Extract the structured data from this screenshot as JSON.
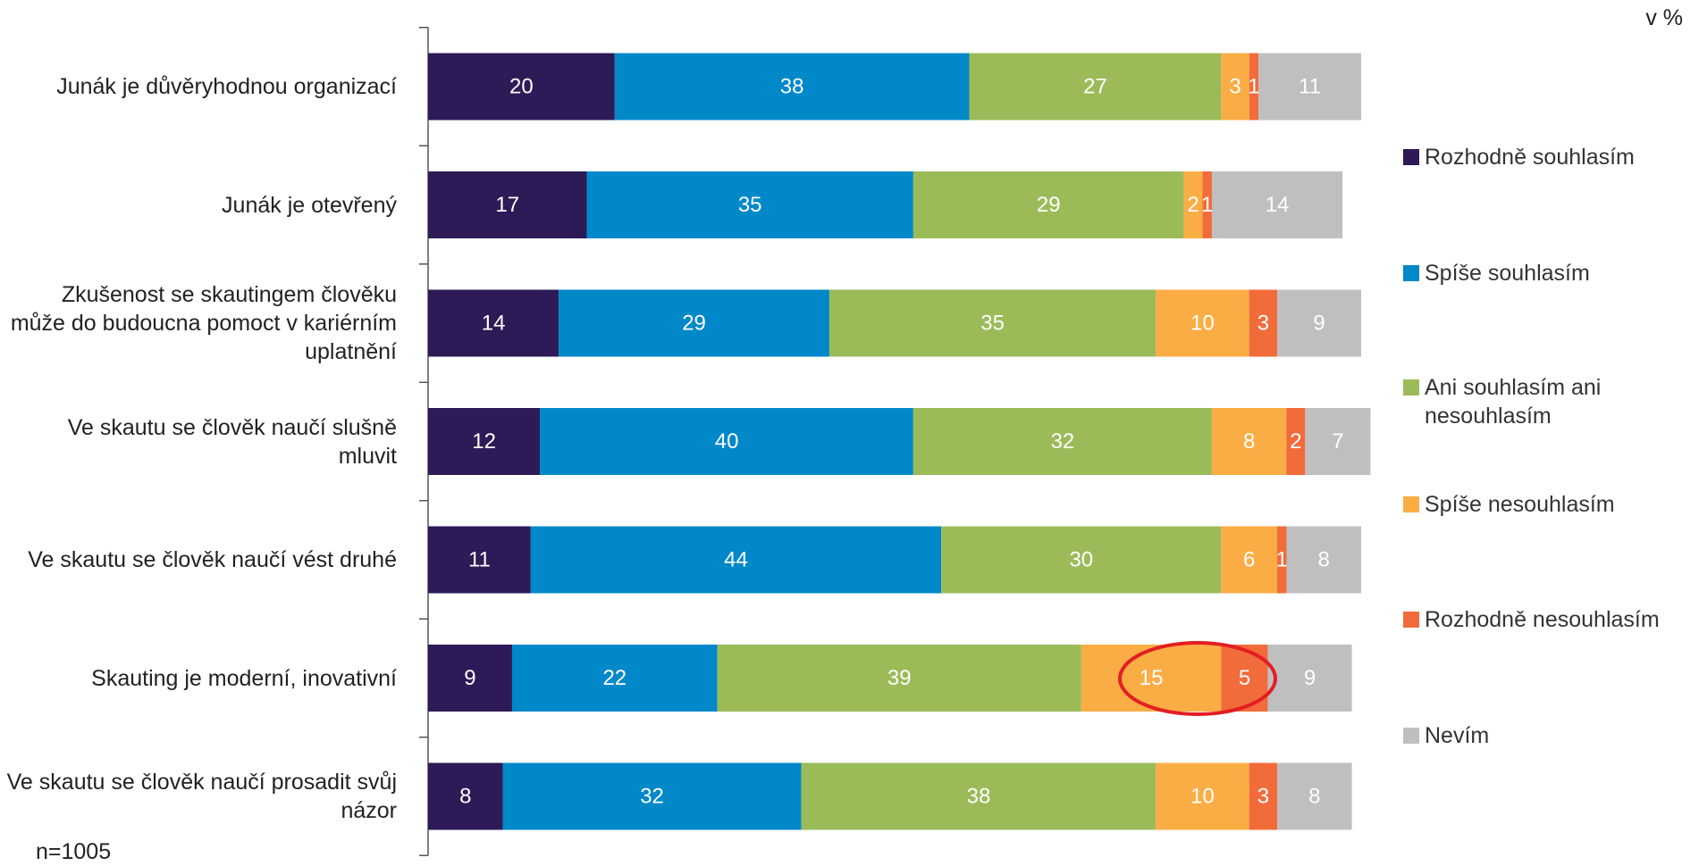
{
  "chart_data": {
    "type": "stacked_bar_horizontal",
    "annotations": [
      "v %",
      "n=1005"
    ],
    "categories": [
      "Junák je důvěryhodnou organizací",
      "Junák je otevřený",
      "Zkušenost se skautingem člověku může do budoucna pomoct v kariérním uplatnění",
      "Ve skautu se člověk naučí slušně mluvit",
      "Ve skautu se člověk naučí vést druhé",
      "Skauting je moderní, inovativní",
      "Ve skautu se člověk naučí prosadit svůj názor"
    ],
    "series": [
      {
        "name": "Rozhodně souhlasím",
        "color": "#2e1a57",
        "values": [
          20,
          17,
          14,
          12,
          11,
          9,
          8
        ]
      },
      {
        "name": "Spíše souhlasím",
        "color": "#0088c9",
        "values": [
          38,
          35,
          29,
          40,
          44,
          22,
          32
        ]
      },
      {
        "name": "Ani souhlasím ani nesouhlasím",
        "color": "#9bbb59",
        "values": [
          27,
          29,
          35,
          32,
          30,
          39,
          38
        ]
      },
      {
        "name": "Spíše nesouhlasím",
        "color": "#fbad45",
        "values": [
          3,
          2,
          10,
          8,
          6,
          15,
          10
        ]
      },
      {
        "name": "Rozhodně nesouhlasím",
        "color": "#f26b3a",
        "values": [
          1,
          1,
          3,
          2,
          1,
          5,
          3
        ]
      },
      {
        "name": "Nevím",
        "color": "#bfbfbf",
        "values": [
          11,
          14,
          9,
          7,
          8,
          9,
          8
        ]
      }
    ],
    "xlim": [
      0,
      100
    ]
  }
}
